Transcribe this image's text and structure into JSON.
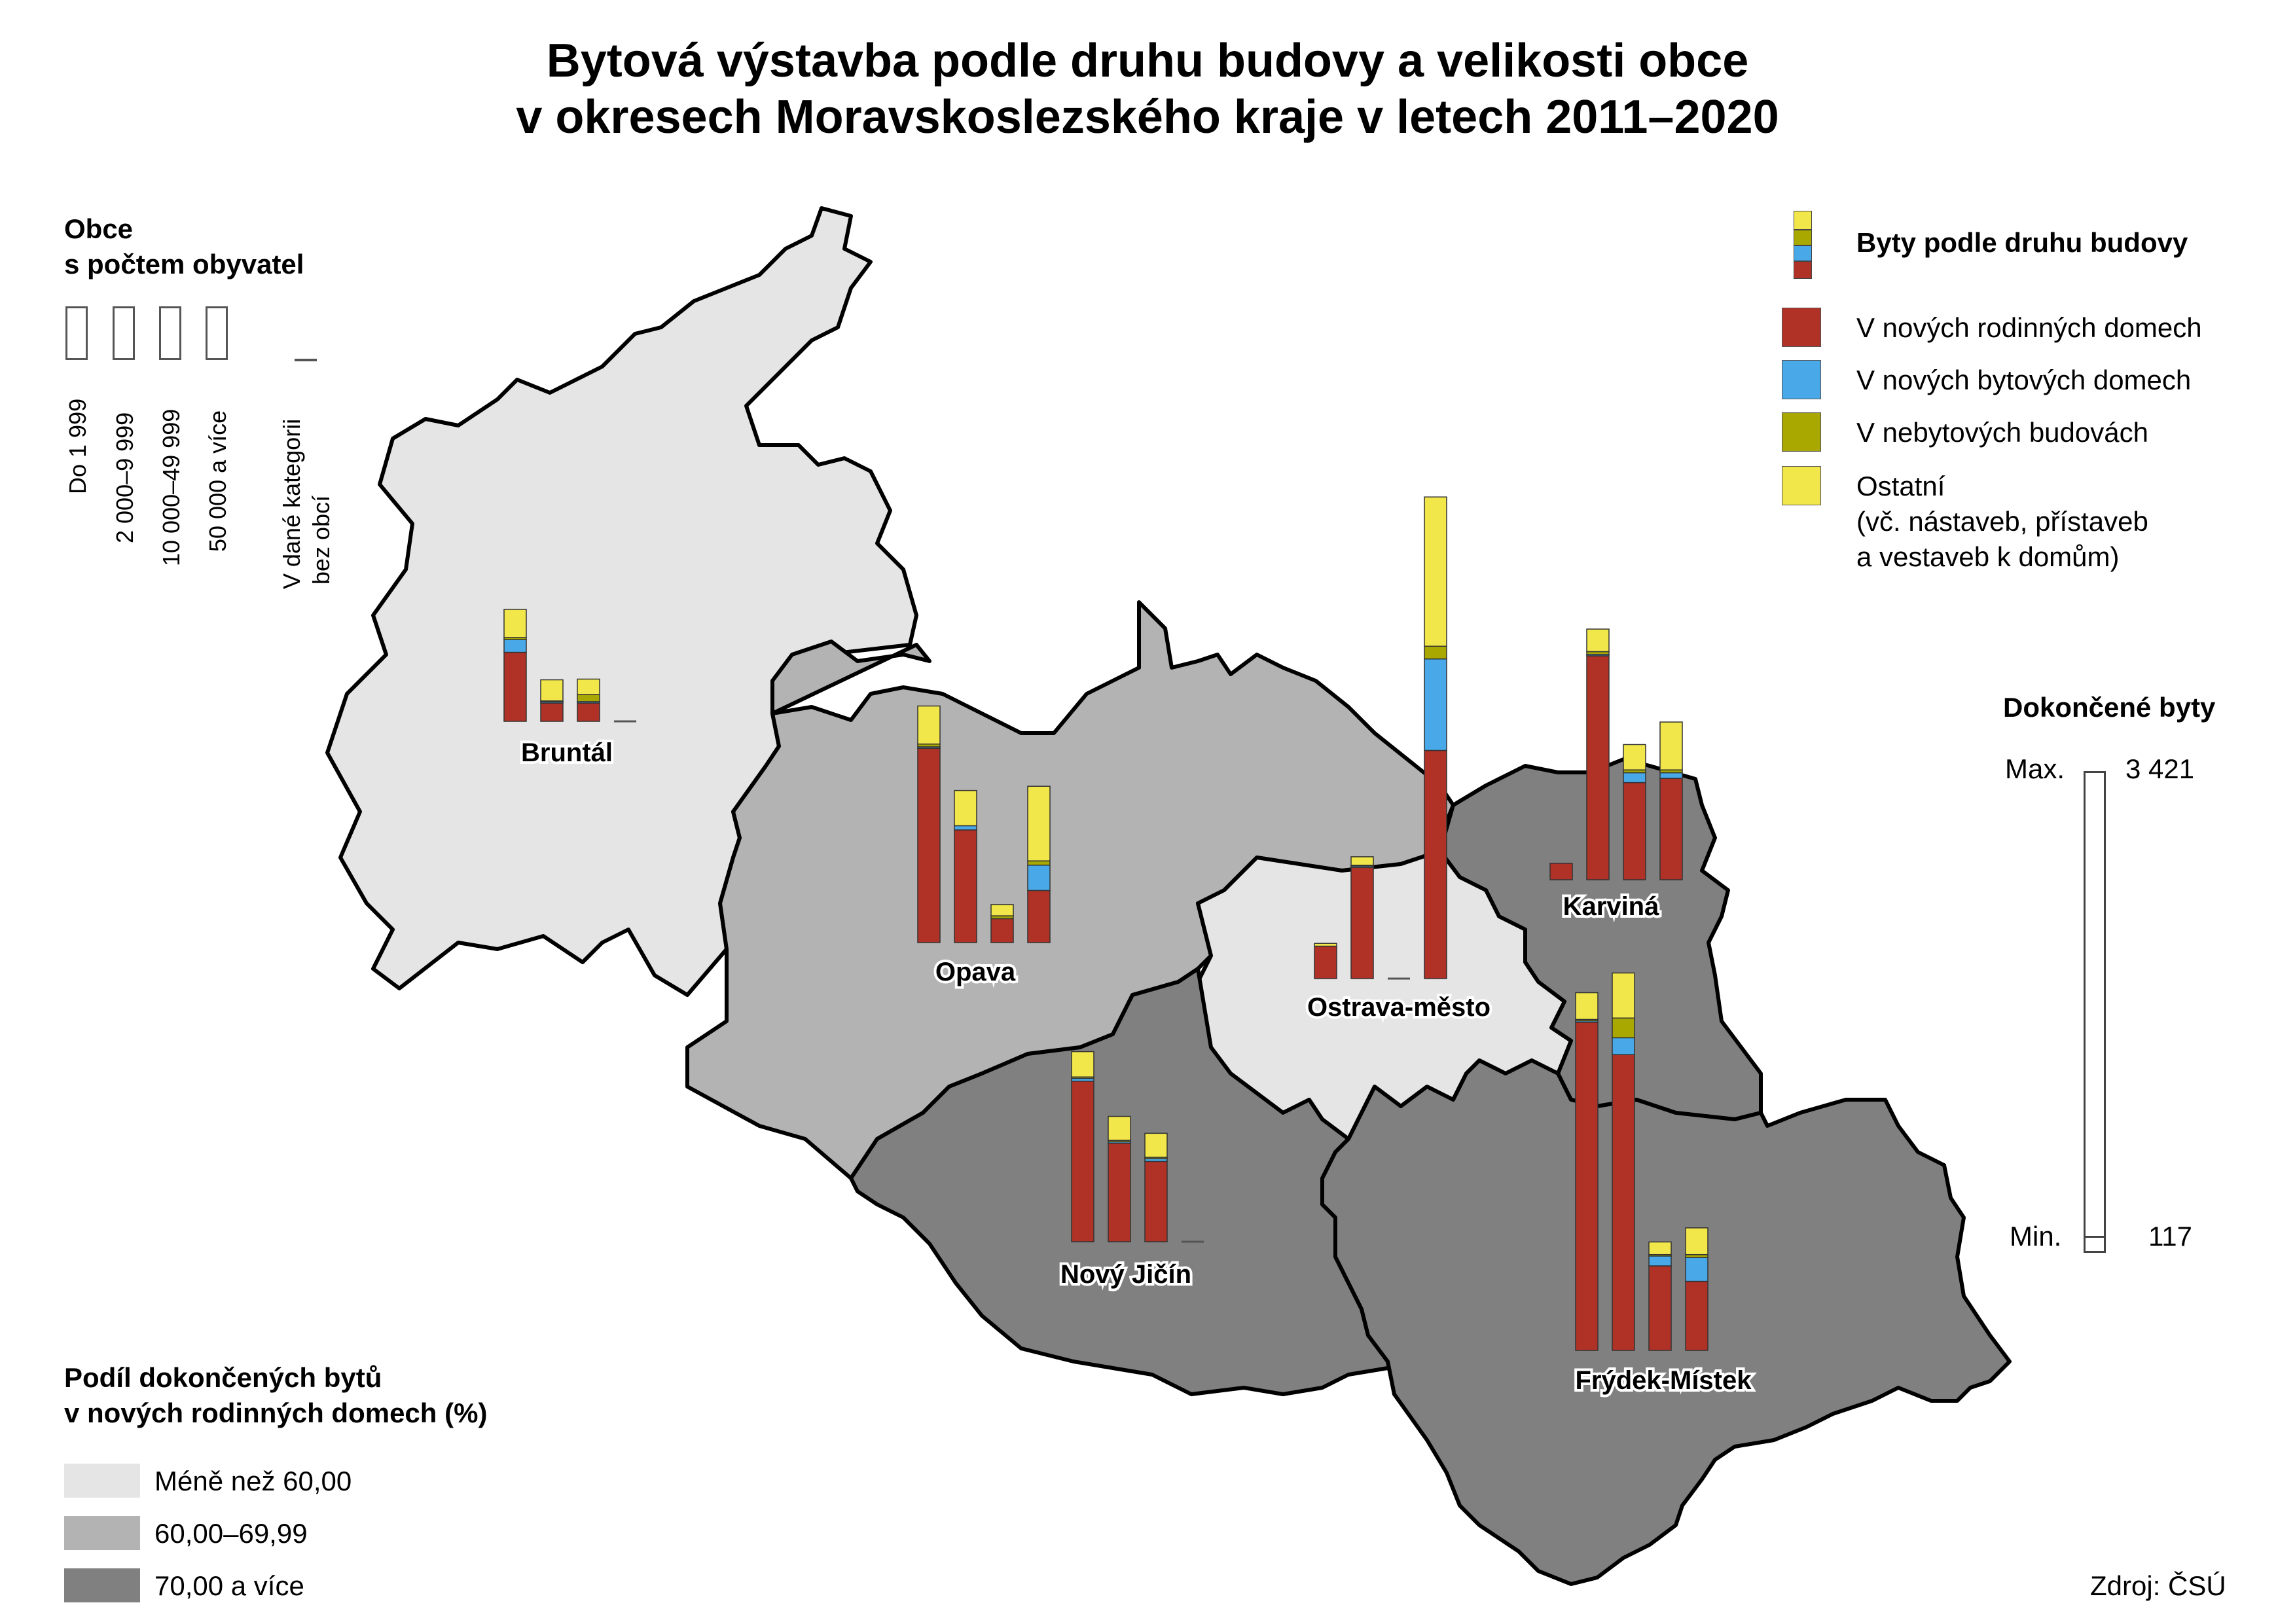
{
  "title": {
    "line1": "Bytová výstavba podle druhu budovy a velikosti obce",
    "line2": "v okresech Moravskoslezského kraje v letech 2011–2020"
  },
  "legend_size": {
    "heading1": "Obce",
    "heading2": "s počtem obyvatel",
    "classes": [
      "Do 1 999",
      "2 000–9 999",
      "10 000–49 999",
      "50 000 a více"
    ],
    "none1": "V dané kategorii",
    "none2": "bez obcí"
  },
  "legend_type": {
    "heading": "Byty podle druhu budovy",
    "items": [
      {
        "label": "V nových rodinných domech",
        "color": "#b03226"
      },
      {
        "label": "V nových bytových domech",
        "color": "#48a8e8"
      },
      {
        "label": "V nebytových budovách",
        "color": "#a8a800"
      },
      {
        "label": "Ostatní",
        "sub1": "(vč. nástaveb, přístaveb",
        "sub2": "a vestaveb k domům)",
        "color": "#f1e64a"
      }
    ]
  },
  "legend_scale": {
    "heading": "Dokončené byty",
    "max_label": "Max.",
    "max_value": "3 421",
    "min_label": "Min.",
    "min_value": "117"
  },
  "legend_share": {
    "heading1": "Podíl dokončených bytů",
    "heading2": "v nových rodinných domech (%)",
    "classes": [
      {
        "label": "Méně než 60,00",
        "color": "#e5e5e5"
      },
      {
        "label": "60,00–69,99",
        "color": "#b3b3b3"
      },
      {
        "label": "70,00 a více",
        "color": "#808080"
      }
    ]
  },
  "source": "Zdroj: ČSÚ",
  "chart_data": {
    "type": "bar",
    "stacked": true,
    "units": "dokončené byty",
    "ylim": [
      0,
      3421
    ],
    "size_classes": [
      "Do 1 999",
      "2 000–9 999",
      "10 000–49 999",
      "50 000 a více"
    ],
    "series": [
      "V nových rodinných domech",
      "V nových bytových domech",
      "V nebytových budovách",
      "Ostatní"
    ],
    "districts": [
      {
        "name": "Bruntál",
        "share_class": "Méně než 60,00",
        "values": [
          [
            490,
            90,
            15,
            200
          ],
          [
            130,
            10,
            5,
            150
          ],
          [
            130,
            10,
            50,
            110
          ],
          null
        ]
      },
      {
        "name": "Opava",
        "share_class": "60,00–69,99",
        "values": [
          [
            1380,
            10,
            20,
            270
          ],
          [
            800,
            30,
            0,
            250
          ],
          [
            170,
            0,
            20,
            80
          ],
          [
            370,
            180,
            30,
            530
          ]
        ]
      },
      {
        "name": "Ostrava-město",
        "share_class": "Méně než 60,00",
        "values": [
          [
            230,
            0,
            0,
            20
          ],
          [
            790,
            10,
            5,
            60
          ],
          null,
          [
            1620,
            650,
            90,
            1060
          ]
        ]
      },
      {
        "name": "Karviná",
        "share_class": "70,00 a více",
        "values": [
          [
            117,
            0,
            0,
            0
          ],
          [
            1590,
            10,
            20,
            160
          ],
          [
            690,
            70,
            20,
            180
          ],
          [
            720,
            40,
            20,
            340
          ]
        ]
      },
      {
        "name": "Nový Jičín",
        "share_class": "70,00 a více",
        "values": [
          [
            1140,
            20,
            10,
            180
          ],
          [
            700,
            10,
            10,
            170
          ],
          [
            570,
            20,
            10,
            170
          ],
          null
        ]
      },
      {
        "name": "Frýdek-Místek",
        "share_class": "70,00 a více",
        "values": [
          [
            2330,
            10,
            10,
            190
          ],
          [
            2100,
            120,
            140,
            320
          ],
          [
            600,
            70,
            10,
            90
          ],
          [
            490,
            170,
            20,
            190
          ]
        ]
      }
    ]
  }
}
